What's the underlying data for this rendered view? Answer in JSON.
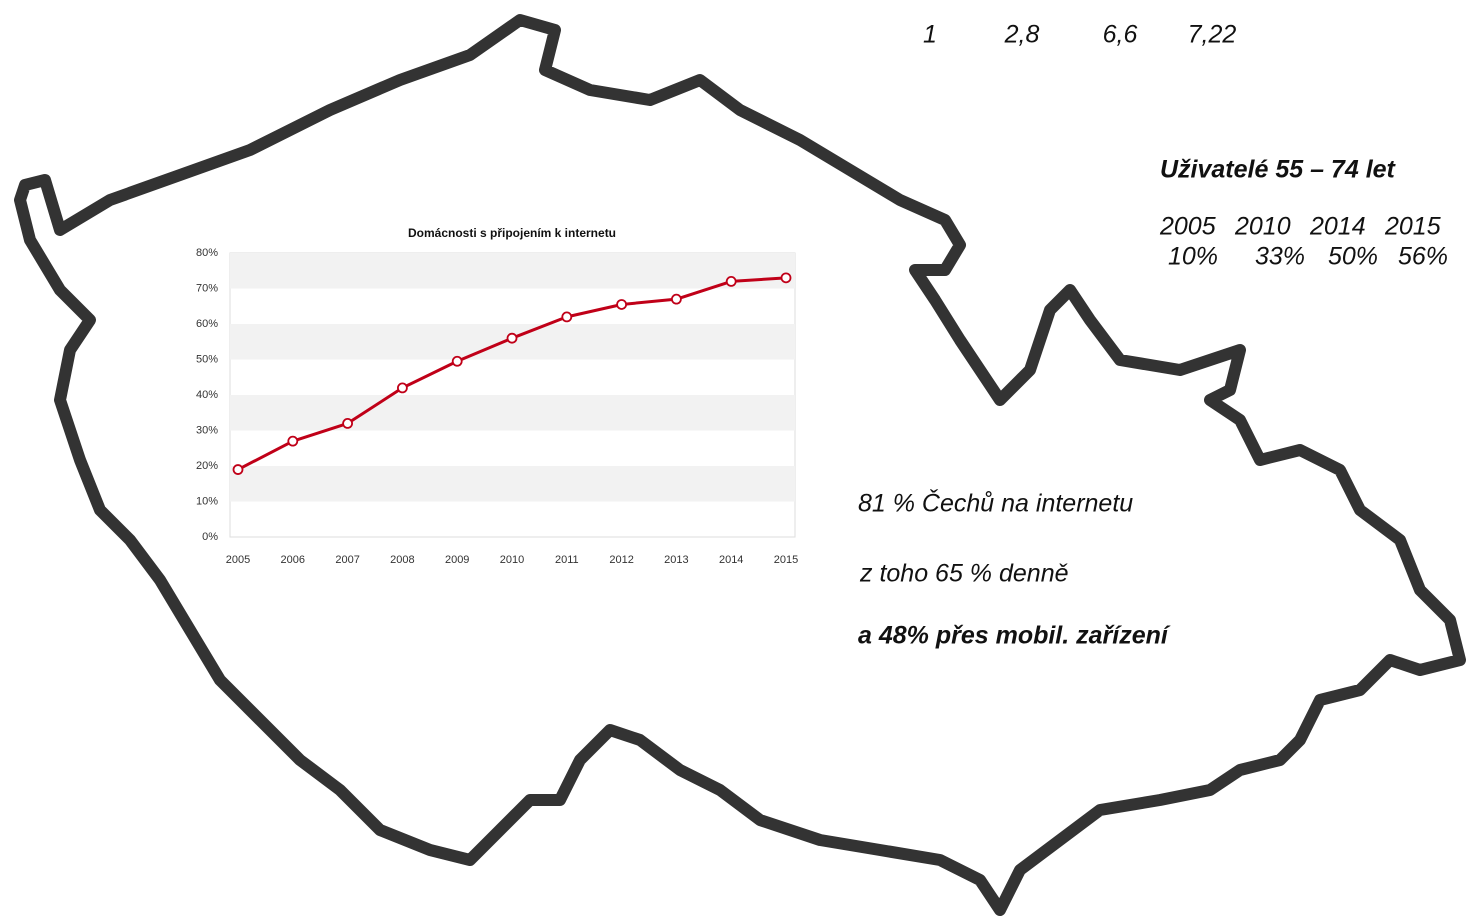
{
  "chart_data": {
    "type": "line",
    "title": "Domácnosti s připojením k internetu",
    "categories": [
      "2005",
      "2006",
      "2007",
      "2008",
      "2009",
      "2010",
      "2011",
      "2012",
      "2013",
      "2014",
      "2015"
    ],
    "values": [
      19,
      27,
      32,
      42,
      49.5,
      56,
      62,
      65.5,
      67,
      72,
      73
    ],
    "color": "#c00018",
    "ylim": [
      0,
      80
    ],
    "yticks": [
      {
        "value": 0,
        "label": "0%"
      },
      {
        "value": 10,
        "label": "10%"
      },
      {
        "value": 20,
        "label": "20%"
      },
      {
        "value": 30,
        "label": "30%"
      },
      {
        "value": 40,
        "label": "40%"
      },
      {
        "value": 50,
        "label": "50%"
      },
      {
        "value": 60,
        "label": "60%"
      },
      {
        "value": 70,
        "label": "70%"
      },
      {
        "value": 80,
        "label": "80%"
      }
    ],
    "grid": "bands"
  },
  "top_row": [
    "1",
    "2,8",
    "6,6",
    "7,22"
  ],
  "users": {
    "title": "Uživatelé  55 – 74 let",
    "years": [
      "2005",
      "2010",
      "2014",
      "2015"
    ],
    "shares": [
      "10%",
      "33%",
      "50%",
      "56%"
    ]
  },
  "statements": [
    "81 % Čechů na internetu",
    "z toho 65 % denně",
    "a 48% přes mobil. zařízení"
  ]
}
